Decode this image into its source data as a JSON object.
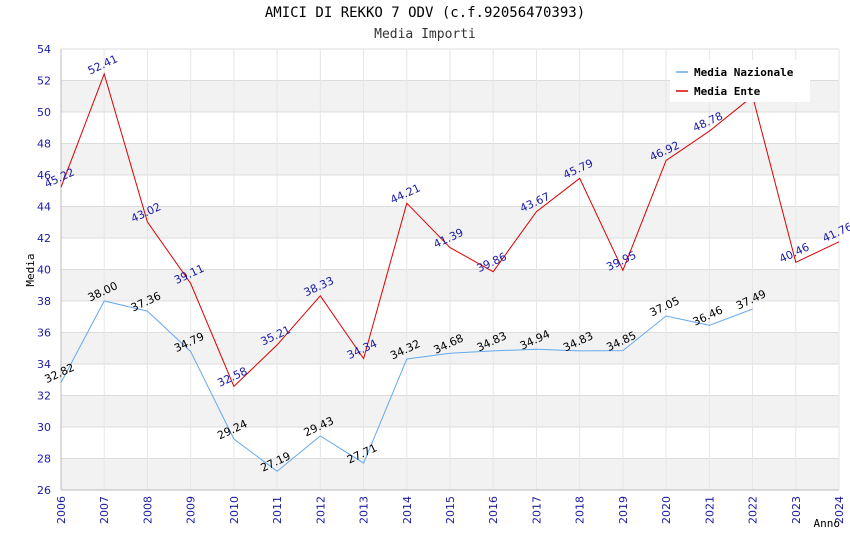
{
  "chart_data": {
    "type": "line",
    "title": "AMICI DI REKKO 7 ODV (c.f.92056470393)",
    "subtitle": "Media Importi",
    "xlabel": "Anno",
    "ylabel": "Media",
    "ylim": [
      26,
      54
    ],
    "yticks": [
      26,
      28,
      30,
      32,
      34,
      36,
      38,
      40,
      42,
      44,
      46,
      48,
      50,
      52,
      54
    ],
    "x": [
      "2006",
      "2007",
      "2008",
      "2009",
      "2010",
      "2011",
      "2012",
      "2013",
      "2014",
      "2015",
      "2016",
      "2017",
      "2018",
      "2019",
      "2020",
      "2021",
      "2022",
      "2023",
      "2024"
    ],
    "grid": true,
    "legend_position": "top-right",
    "series": [
      {
        "name": "Media Nazionale",
        "color": "#66aaee",
        "label_color": "#000000",
        "values": [
          32.82,
          38.0,
          37.36,
          34.79,
          29.24,
          27.19,
          29.43,
          27.71,
          34.32,
          34.68,
          34.83,
          34.94,
          34.83,
          34.85,
          37.05,
          36.46,
          37.49,
          null,
          null
        ],
        "labels": [
          "32.82",
          "38.00",
          "37.36",
          "34.79",
          "29.24",
          "27.19",
          "29.43",
          "27.71",
          "34.32",
          "34.68",
          "34.83",
          "34.94",
          "34.83",
          "34.85",
          "37.05",
          "36.46",
          "37.49",
          null,
          null
        ]
      },
      {
        "name": "Media Ente",
        "color": "#dd0000",
        "label_color": "#1a1aa6",
        "values": [
          45.22,
          52.41,
          43.02,
          39.11,
          32.58,
          35.21,
          38.33,
          34.34,
          44.21,
          41.39,
          39.86,
          43.67,
          45.79,
          39.95,
          46.92,
          48.78,
          51.0,
          40.46,
          41.76
        ],
        "labels": [
          "45.22",
          "52.41",
          "43.02",
          "39.11",
          "32.58",
          "35.21",
          "38.33",
          "34.34",
          "44.21",
          "41.39",
          "39.86",
          "43.67",
          "45.79",
          "39.95",
          "46.92",
          "48.78",
          null,
          "40.46",
          "41.76"
        ]
      }
    ]
  }
}
